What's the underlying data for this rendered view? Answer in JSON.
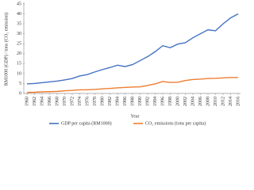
{
  "chart_data": {
    "type": "line",
    "y_label": "RM1000 (GDP) / tons (CO₂ emission)",
    "x_label": "Year",
    "x": [
      1960,
      1962,
      1964,
      1966,
      1968,
      1970,
      1972,
      1974,
      1976,
      1978,
      1980,
      1982,
      1984,
      1986,
      1988,
      1990,
      1992,
      1994,
      1996,
      1998,
      2000,
      2002,
      2004,
      2006,
      2008,
      2010,
      2012,
      2014,
      2016
    ],
    "series": [
      {
        "name": "GDP per capita (RM1000)",
        "color": "#4472c4",
        "values": [
          4.8,
          5.0,
          5.4,
          5.8,
          6.2,
          6.8,
          7.5,
          8.8,
          9.5,
          10.8,
          12.0,
          13.0,
          14.2,
          13.5,
          14.5,
          16.5,
          18.5,
          21.0,
          24.0,
          23.0,
          24.8,
          25.5,
          28.0,
          30.0,
          32.0,
          31.5,
          35.0,
          38.0,
          40.0
        ]
      },
      {
        "name": "CO₂ emissions (tons per capita)",
        "color": "#ed7d31",
        "values": [
          0.5,
          0.6,
          0.8,
          0.9,
          1.0,
          1.3,
          1.5,
          1.8,
          1.8,
          2.0,
          2.3,
          2.5,
          2.8,
          3.0,
          3.2,
          3.3,
          4.0,
          4.8,
          6.0,
          5.5,
          5.6,
          6.5,
          7.0,
          7.2,
          7.5,
          7.6,
          7.8,
          8.0,
          8.0
        ]
      }
    ],
    "xlim": [
      1960,
      2016
    ],
    "xticks": [
      1960,
      1962,
      1964,
      1966,
      1968,
      1970,
      1972,
      1974,
      1976,
      1978,
      1980,
      1982,
      1984,
      1986,
      1988,
      1990,
      1992,
      1994,
      1996,
      1998,
      2000,
      2002,
      2004,
      2006,
      2008,
      2010,
      2012,
      2014,
      2016
    ],
    "ylim": [
      0,
      45
    ],
    "yticks": [
      0,
      5,
      10,
      15,
      20,
      25,
      30,
      35,
      40,
      45
    ],
    "grid": false,
    "legend": "bottom"
  }
}
